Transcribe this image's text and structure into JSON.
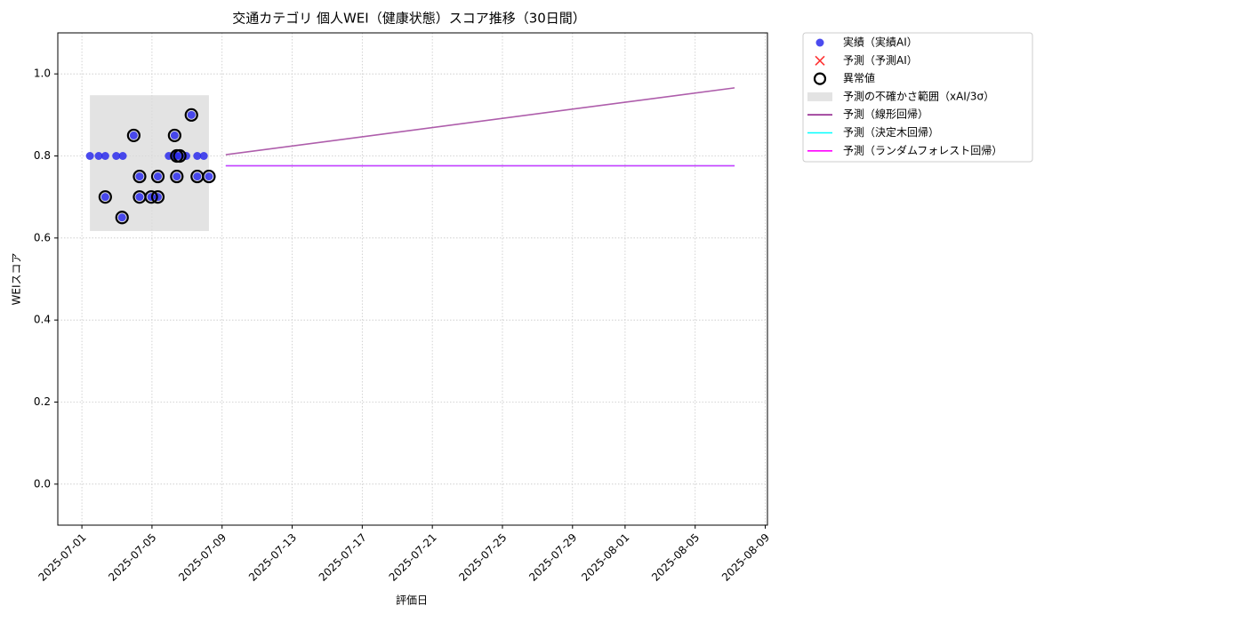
{
  "chart_data": {
    "type": "scatter",
    "title": "交通カテゴリ 個人WEI（健康状態）スコア推移（30日間）",
    "x_label": "評価日",
    "y_label": "WEIスコア",
    "xlim": [
      "2025-06-29T15:00",
      "2025-08-09T03:00"
    ],
    "ylim": [
      -0.1,
      1.1
    ],
    "xticks": [
      "2025-07-01",
      "2025-07-05",
      "2025-07-09",
      "2025-07-13",
      "2025-07-17",
      "2025-07-21",
      "2025-07-25",
      "2025-07-29",
      "2025-08-01",
      "2025-08-05",
      "2025-08-09"
    ],
    "yticks": [
      {
        "value": 0,
        "label": "0.0"
      },
      0.2,
      0.4,
      0.6,
      0.8,
      {
        "value": 1,
        "label": "1.0"
      }
    ],
    "grid": true,
    "legend": "outside-upper-right",
    "series": [
      {
        "name": "実績（実績AI）",
        "kind": "scatter",
        "color": "#2b2bec",
        "x": [
          "2025-07-01T11:00",
          "2025-07-01T23:00",
          "2025-07-02T08:00",
          "2025-07-02T08:00",
          "2025-07-02T23:00",
          "2025-07-03T08:00",
          "2025-07-03T07:00",
          "2025-07-03T23:00",
          "2025-07-04T07:00",
          "2025-07-04T07:00",
          "2025-07-04T23:00",
          "2025-07-05T08:00",
          "2025-07-05T08:00",
          "2025-07-05T23:00",
          "2025-07-06T07:00",
          "2025-07-06T07:00",
          "2025-07-06T10:00",
          "2025-07-06T10:00",
          "2025-07-06T14:00",
          "2025-07-06T23:00",
          "2025-07-07T06:00",
          "2025-07-07T14:00",
          "2025-07-07T14:00",
          "2025-07-07T23:00",
          "2025-07-08T06:00"
        ],
        "values": [
          0.8,
          0.8,
          0.8,
          0.7,
          0.8,
          0.8,
          0.65,
          0.85,
          0.75,
          0.7,
          0.7,
          0.75,
          0.7,
          0.8,
          0.85,
          0.8,
          0.75,
          0.8,
          0.8,
          0.8,
          0.9,
          0.8,
          0.75,
          0.8,
          0.75
        ]
      },
      {
        "name": "予測（予測AI）",
        "kind": "cross",
        "color": "#ff3333",
        "x": [],
        "values": []
      },
      {
        "name": "異常値",
        "kind": "ring",
        "color": "#000000",
        "x": [
          "2025-07-02T08:00",
          "2025-07-03T07:00",
          "2025-07-03T23:00",
          "2025-07-04T07:00",
          "2025-07-04T07:00",
          "2025-07-04T23:00",
          "2025-07-05T08:00",
          "2025-07-05T08:00",
          "2025-07-06T07:00",
          "2025-07-06T10:00",
          "2025-07-06T10:00",
          "2025-07-06T14:00",
          "2025-07-07T06:00",
          "2025-07-07T14:00",
          "2025-07-08T06:00"
        ],
        "values": [
          0.7,
          0.65,
          0.85,
          0.75,
          0.7,
          0.7,
          0.75,
          0.7,
          0.85,
          0.75,
          0.8,
          0.8,
          0.9,
          0.75,
          0.75
        ]
      },
      {
        "name": "予測の不確かさ範囲（xAI/3σ）",
        "kind": "band",
        "color": "#d9d9d9",
        "x": [
          "2025-07-01T11:00",
          "2025-07-08T06:00"
        ],
        "lower": 0.617,
        "upper": 0.948
      },
      {
        "name": "予測（線形回帰）",
        "kind": "line",
        "color": "#93278f",
        "x": [
          "2025-07-09T05:00",
          "2025-08-07T06:00"
        ],
        "values": [
          0.803,
          0.966
        ]
      },
      {
        "name": "予測（決定木回帰）",
        "kind": "line",
        "color": "#00ffff",
        "x": [
          "2025-07-09T05:00",
          "2025-08-07T06:00"
        ],
        "values": [
          0.776,
          0.776
        ]
      },
      {
        "name": "予測（ランダムフォレスト回帰）",
        "kind": "line",
        "color": "#ff00ff",
        "x": [
          "2025-07-09T05:00",
          "2025-08-07T06:00"
        ],
        "values": [
          0.776,
          0.776
        ]
      }
    ]
  }
}
